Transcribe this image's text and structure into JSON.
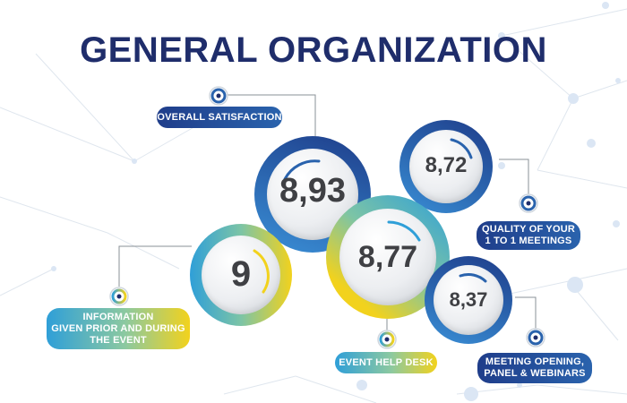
{
  "title": "GENERAL ORGANIZATION",
  "colors": {
    "navy": "#1f2d6b",
    "blue": "#2a63ad",
    "light_blue": "#2f9fd8",
    "yellow": "#f2d21d",
    "score_text": "#3f4044"
  },
  "metrics": [
    {
      "id": "overall",
      "score": "8,93",
      "label": "OVERALL SATISFACTION"
    },
    {
      "id": "quality",
      "score": "8,72",
      "label_line1": "QUALITY OF YOUR",
      "label_line2": "1 TO 1 MEETINGS"
    },
    {
      "id": "information",
      "score": "9",
      "label_line1": "INFORMATION",
      "label_line2": "GIVEN PRIOR AND DURING",
      "label_line3": "THE EVENT"
    },
    {
      "id": "helpdesk",
      "score": "8,77",
      "label": "EVENT HELP DESK"
    },
    {
      "id": "meeting",
      "score": "8,37",
      "label_line1": "MEETING OPENING,",
      "label_line2": "PANEL & WEBINARS"
    }
  ]
}
